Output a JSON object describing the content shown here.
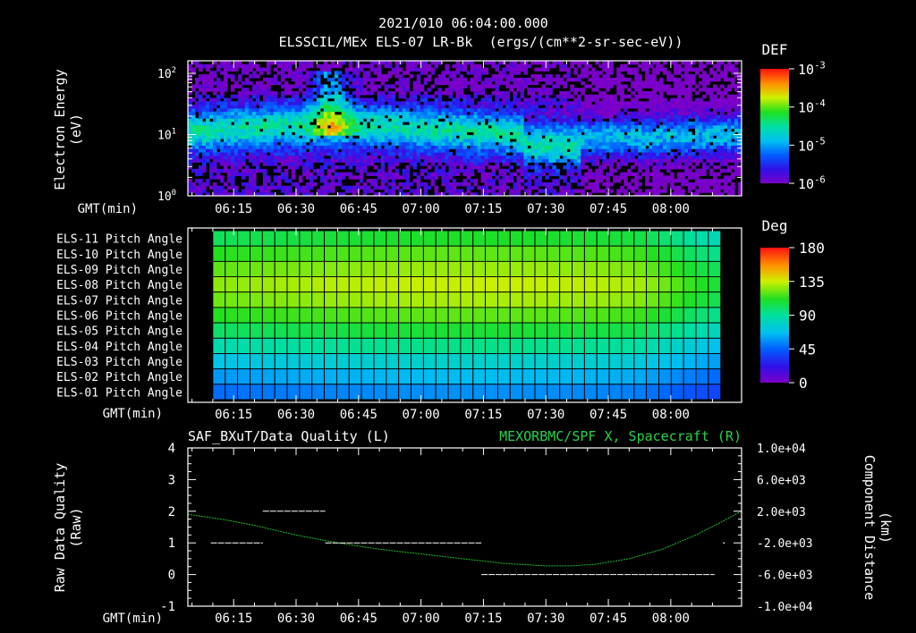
{
  "header": {
    "timestamp": "2021/010 06:04:00.000",
    "instrument": "ELSSCIL/MEx ELS-07 LR-Bk",
    "units": "(ergs/(cm**2-sr-sec-eV))"
  },
  "colors": {
    "background": "#000000",
    "axes": "#ffffff",
    "quality_trace": "#ffffff",
    "spacecraft_trace": "#22c02a",
    "spacecraft_title": "#2ad14a"
  },
  "chart_data": [
    {
      "type": "heatmap",
      "id": "energy_spectrogram",
      "title": "ELSSCIL/MEx ELS-07 LR-Bk",
      "ylabel": "Electron Energy (eV)",
      "ylabel_lines": [
        "Electron Energy",
        "(eV)"
      ],
      "xlabel": "GMT(min)",
      "y_scale": "log",
      "ylim": [
        1,
        160
      ],
      "y_ticks": [
        {
          "value": 1,
          "base": "10",
          "exp": "0"
        },
        {
          "value": 10,
          "base": "10",
          "exp": "1"
        },
        {
          "value": 100,
          "base": "10",
          "exp": "2"
        }
      ],
      "x_ticks": [
        "06:15",
        "06:30",
        "06:45",
        "07:00",
        "07:15",
        "07:30",
        "07:45",
        "08:00"
      ],
      "x_tick_minutes": [
        375,
        390,
        405,
        420,
        435,
        450,
        465,
        480
      ],
      "xlim_minutes": [
        364,
        497
      ],
      "colorbar": {
        "title": "DEF",
        "scale": "log",
        "range": [
          1e-06,
          0.001
        ],
        "ticks": [
          {
            "value": 0.001,
            "base": "10",
            "exp": "-3"
          },
          {
            "value": 0.0001,
            "base": "10",
            "exp": "-4"
          },
          {
            "value": 1e-05,
            "base": "10",
            "exp": "-5"
          },
          {
            "value": 1e-06,
            "base": "10",
            "exp": "-6"
          }
        ]
      },
      "features": [
        {
          "description": "enhanced flux peak",
          "time_range": [
            "06:35",
            "06:42"
          ],
          "energy_range_eV": [
            15,
            80
          ],
          "level": 0.0001
        }
      ]
    },
    {
      "type": "heatmap",
      "id": "pitch_angle",
      "xlabel": "GMT(min)",
      "rows": [
        "ELS-11 Pitch Angle",
        "ELS-10 Pitch Angle",
        "ELS-09 Pitch Angle",
        "ELS-08 Pitch Angle",
        "ELS-07 Pitch Angle",
        "ELS-06 Pitch Angle",
        "ELS-05 Pitch Angle",
        "ELS-04 Pitch Angle",
        "ELS-03 Pitch Angle",
        "ELS-02 Pitch Angle",
        "ELS-01 Pitch Angle"
      ],
      "row_pitch_angles_deg": [
        102,
        112,
        120,
        126,
        122,
        112,
        100,
        86,
        70,
        58,
        48
      ],
      "x_ticks": [
        "06:15",
        "06:30",
        "06:45",
        "07:00",
        "07:15",
        "07:30",
        "07:45",
        "08:00"
      ],
      "x_tick_minutes": [
        375,
        390,
        405,
        420,
        435,
        450,
        465,
        480
      ],
      "xlim_minutes": [
        364,
        497
      ],
      "data_range_minutes": [
        370,
        492
      ],
      "colorbar": {
        "title": "Deg",
        "range": [
          0,
          180
        ],
        "ticks": [
          "180",
          "135",
          "90",
          "45",
          "0"
        ],
        "tick_values": [
          180,
          135,
          90,
          45,
          0
        ]
      }
    },
    {
      "type": "line",
      "id": "quality_and_position",
      "title_left": "SAF_BXuT/Data Quality (L)",
      "title_right": "MEXORBMC/SPF X, Spacecraft (R)",
      "ylabel_left": "Raw Data Quality (Raw)",
      "ylabel_left_lines": [
        "Raw Data Quality",
        "(Raw)"
      ],
      "ylabel_right": "Component Distance (km)",
      "ylabel_right_lines": [
        "Component Distance",
        "(km)"
      ],
      "xlabel": "GMT(min)",
      "x_ticks": [
        "06:15",
        "06:30",
        "06:45",
        "07:00",
        "07:15",
        "07:30",
        "07:45",
        "08:00"
      ],
      "x_tick_minutes": [
        375,
        390,
        405,
        420,
        435,
        450,
        465,
        480
      ],
      "xlim_minutes": [
        364,
        497
      ],
      "ylim_left": [
        -1,
        4
      ],
      "y_ticks_left": [
        "-1",
        "0",
        "1",
        "2",
        "3",
        "4"
      ],
      "y_tick_values_left": [
        -1,
        0,
        1,
        2,
        3,
        4
      ],
      "ylim_right": [
        -10000,
        10000
      ],
      "y_ticks_right": [
        "1.0e+04",
        "6.0e+03",
        "2.0e+03",
        "-2.0e+03",
        "-6.0e+03",
        "-1.0e+04"
      ],
      "y_tick_values_right": [
        10000,
        6000,
        2000,
        -2000,
        -6000,
        -10000
      ],
      "series": [
        {
          "name": "SAF_BXuT/Data Quality",
          "axis": "left",
          "style": "segments",
          "segments": [
            {
              "t_start": 369.5,
              "t_end": 382,
              "value": 1
            },
            {
              "t_start": 382,
              "t_end": 397,
              "value": 2
            },
            {
              "t_start": 397,
              "t_end": 434.5,
              "value": 1
            },
            {
              "t_start": 434.5,
              "t_end": 490.5,
              "value": 0
            },
            {
              "t_start": 492.5,
              "t_end": 493,
              "value": 1
            }
          ]
        },
        {
          "name": "MEXORBMC/SPF X, Spacecraft",
          "axis": "right",
          "style": "line",
          "x_minutes": [
            364,
            372,
            380,
            390,
            400,
            410,
            420,
            430,
            440,
            450,
            456,
            462,
            470,
            478,
            486,
            492,
            497
          ],
          "values": [
            1600,
            1000,
            200,
            -1000,
            -2000,
            -2800,
            -3400,
            -4000,
            -4600,
            -4900,
            -4900,
            -4700,
            -4000,
            -2800,
            -1000,
            600,
            2000
          ]
        }
      ]
    }
  ]
}
